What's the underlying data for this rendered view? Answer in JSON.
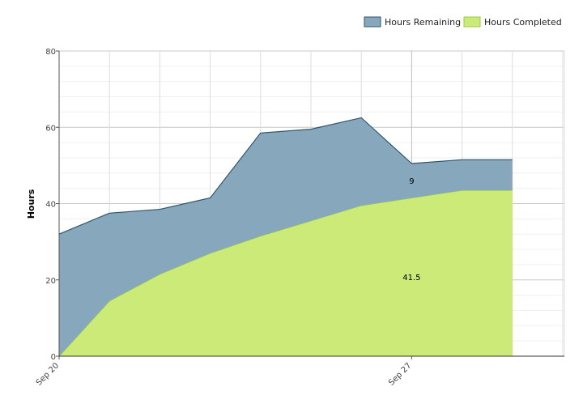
{
  "chart_data": {
    "type": "area",
    "stacked": true,
    "ylabel": "Hours",
    "ylim": [
      0,
      80
    ],
    "yticks": [
      0,
      20,
      40,
      60,
      80
    ],
    "x": [
      "Sep 20",
      "Sep 21",
      "Sep 22",
      "Sep 23",
      "Sep 24",
      "Sep 25",
      "Sep 26",
      "Sep 27",
      "Sep 28",
      "Sep 29"
    ],
    "xtick_labels": [
      "Sep 20",
      "Sep 27"
    ],
    "grid": true,
    "legend_position": "top-right",
    "series": [
      {
        "name": "Hours Completed",
        "color": "#cbea77",
        "line_color": "#9acb44",
        "values": [
          0,
          14.5,
          21.5,
          27,
          31.5,
          35.5,
          39.5,
          41.5,
          43.5,
          43.5
        ]
      },
      {
        "name": "Hours Remaining",
        "color": "#87a8bc",
        "line_color": "#2d5470",
        "values": [
          32,
          23,
          17,
          14.5,
          27,
          24,
          23,
          9,
          8,
          8
        ]
      }
    ],
    "data_labels": [
      {
        "x": "Sep 27",
        "series": "Hours Remaining",
        "text": "9"
      },
      {
        "x": "Sep 27",
        "series": "Hours Completed",
        "text": "41.5"
      }
    ]
  }
}
